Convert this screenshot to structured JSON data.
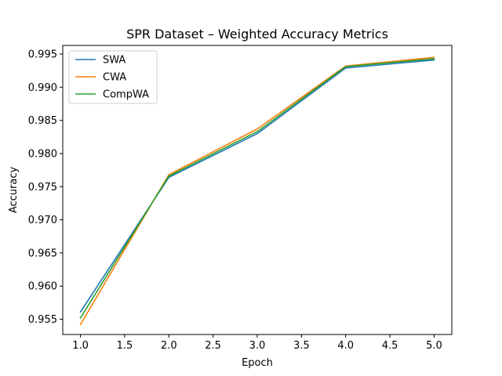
{
  "chart_data": {
    "type": "line",
    "title": "SPR Dataset – Weighted Accuracy Metrics",
    "xlabel": "Epoch",
    "ylabel": "Accuracy",
    "x": [
      1.0,
      2.0,
      3.0,
      4.0,
      5.0
    ],
    "xlim": [
      0.8,
      5.2
    ],
    "ylim": [
      0.9527,
      0.9963
    ],
    "xticks": [
      "1.0",
      "1.5",
      "2.0",
      "2.5",
      "3.0",
      "3.5",
      "4.0",
      "4.5",
      "5.0"
    ],
    "yticks": [
      "0.955",
      "0.960",
      "0.965",
      "0.970",
      "0.975",
      "0.980",
      "0.985",
      "0.990",
      "0.995"
    ],
    "grid": false,
    "legend_position": "top-left",
    "series": [
      {
        "name": "SWA",
        "color": "#1f77b4",
        "values": [
          0.9561,
          0.9764,
          0.983,
          0.9929,
          0.9941
        ]
      },
      {
        "name": "CWA",
        "color": "#ff7f0e",
        "values": [
          0.9542,
          0.9768,
          0.9837,
          0.9932,
          0.9945
        ]
      },
      {
        "name": "CompWA",
        "color": "#2ca02c",
        "values": [
          0.9552,
          0.9766,
          0.9833,
          0.9931,
          0.9943
        ]
      }
    ]
  }
}
